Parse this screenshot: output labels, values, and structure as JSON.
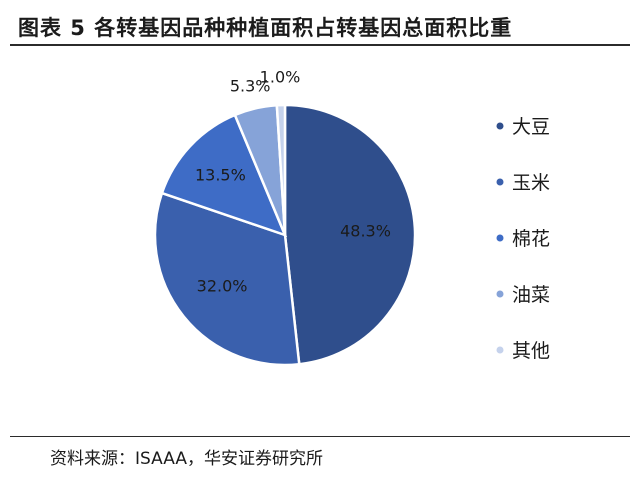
{
  "header": {
    "title": "图表 5 各转基因品种种植面积占转基因总面积比重"
  },
  "footer": {
    "source": "资料来源：ISAAA，华安证券研究所"
  },
  "chart_data": {
    "type": "pie",
    "title": "图表 5 各转基因品种种植面积占转基因总面积比重",
    "categories": [
      "大豆",
      "玉米",
      "棉花",
      "油菜",
      "其他"
    ],
    "values": [
      48.3,
      32.0,
      13.5,
      5.3,
      1.0
    ],
    "labels": [
      "48.3%",
      "32.0%",
      "13.5%",
      "5.3%",
      "1.0%"
    ],
    "colors": [
      "#2f4e8c",
      "#3a60ad",
      "#3e6cc6",
      "#86a3d8",
      "#c5d2ec"
    ],
    "legend_position": "right",
    "start_angle": "12 o'clock, clockwise"
  }
}
